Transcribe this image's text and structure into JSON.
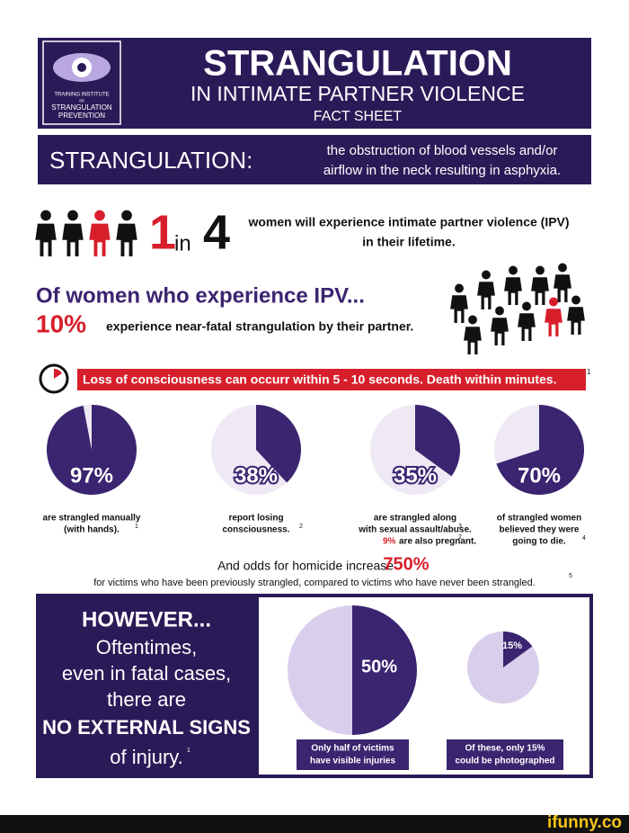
{
  "header": {
    "logo_lines": [
      "TRAINING INSTITUTE",
      "on",
      "STRANGULATION",
      "PREVENTION"
    ],
    "title": "STRANGULATION",
    "subtitle": "IN INTIMATE PARTNER VIOLENCE",
    "kind": "FACT SHEET"
  },
  "definition": {
    "term": "STRANGULATION:",
    "lines": [
      "the obstruction of blood vessels and/or",
      "airflow in the neck resulting in asphyxia."
    ]
  },
  "one_in_four": {
    "one": "1",
    "in": "in",
    "four": "4",
    "lines": [
      "women will experience intimate partner violence (IPV)",
      "in their lifetime."
    ]
  },
  "ipv": {
    "heading": "Of women who experience IPV...",
    "percent": "10%",
    "text": "experience near-fatal strangulation by their partner."
  },
  "alert": {
    "text": "Loss of consciousness can occurr within 5 - 10 seconds. Death within minutes.",
    "note": "1"
  },
  "stats": [
    {
      "value": 97,
      "label": "97%",
      "lines": [
        "are strangled manually",
        "(with hands)."
      ],
      "note": "1"
    },
    {
      "value": 38,
      "label": "38%",
      "lines": [
        "report losing",
        "consciousness."
      ],
      "note": "2"
    },
    {
      "value": 35,
      "label": "35%",
      "lines": [
        "are strangled along",
        "with sexual assault/abuse."
      ],
      "note": "3",
      "extra": "9%",
      "extra_text": "are also pregnant.",
      "extra_note": "2"
    },
    {
      "value": 70,
      "label": "70%",
      "lines": [
        "of strangled women",
        "believed they were",
        "going to die."
      ],
      "note": "4"
    }
  ],
  "homicide": {
    "text": "And odds for homicide increase",
    "percent": "750%",
    "detail": "for victims who have been previously strangled, compared to victims who have never been strangled.",
    "note": "5"
  },
  "however": {
    "lines": [
      "HOWEVER...",
      "Oftentimes,",
      "even in fatal cases,",
      "there are",
      "NO EXTERNAL SIGNS",
      "of injury."
    ],
    "note": "1"
  },
  "visible": [
    {
      "value": 50,
      "label": "50%",
      "caption": [
        "Only half of victims",
        "have visible injuries"
      ]
    },
    {
      "value": 15,
      "label": "15%",
      "caption": [
        "Of these, only 15%",
        "could be photographed"
      ]
    }
  ],
  "footer": {
    "brand": "ifunny.co"
  }
}
